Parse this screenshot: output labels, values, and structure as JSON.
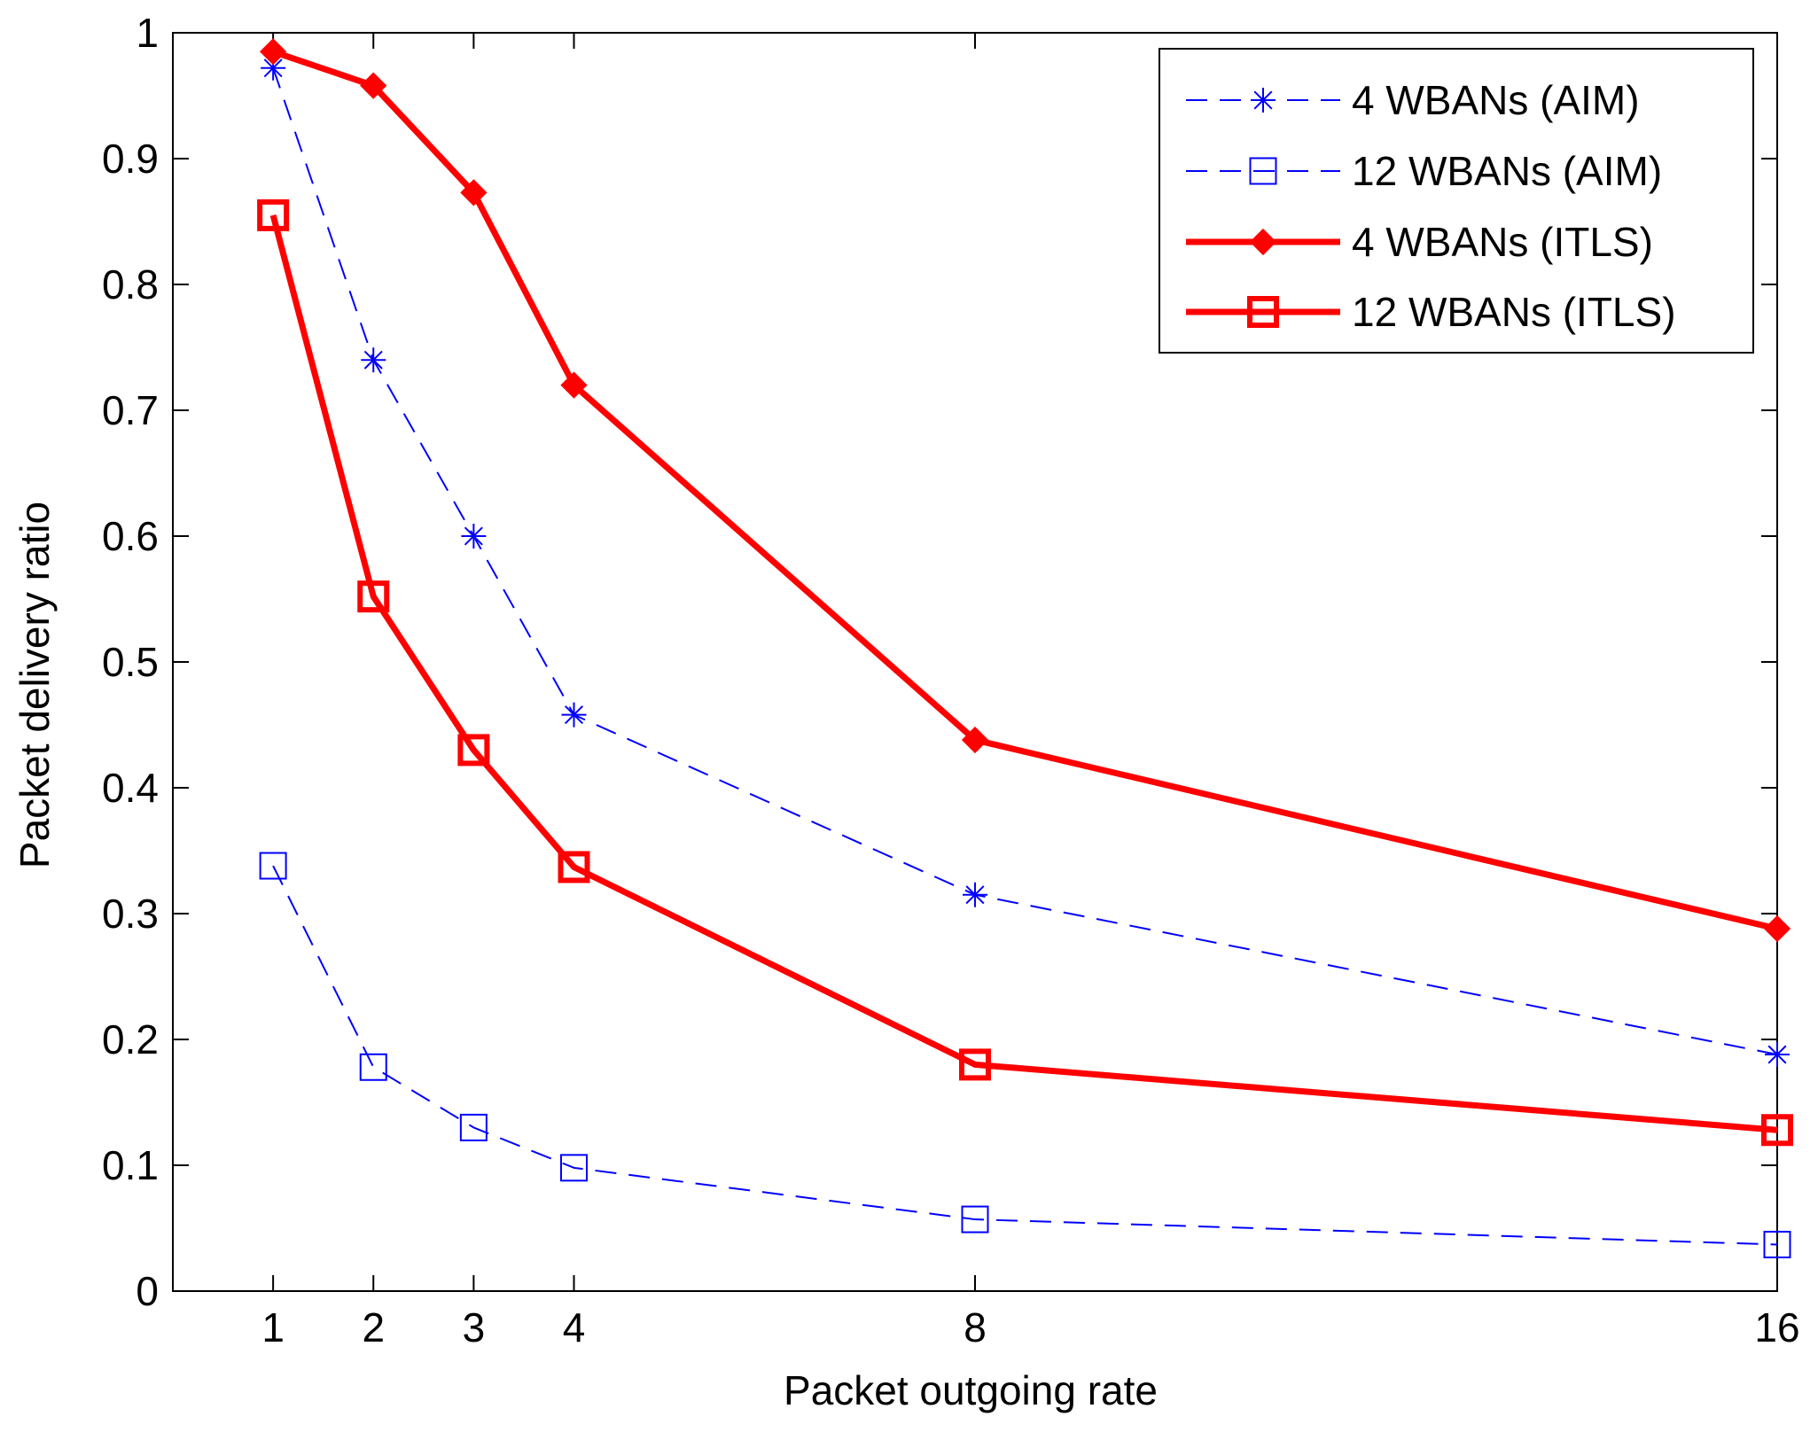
{
  "chart_data": {
    "type": "line",
    "title": "",
    "xlabel": "Packet outgoing rate",
    "ylabel": "Packet delivery ratio",
    "x": [
      1,
      2,
      3,
      4,
      8,
      16
    ],
    "x_tick_labels": [
      "1",
      "2",
      "3",
      "4",
      "8",
      "16"
    ],
    "xlim": [
      0,
      16
    ],
    "ylim": [
      0,
      1
    ],
    "y_ticks": [
      0,
      0.1,
      0.2,
      0.3,
      0.4,
      0.5,
      0.6,
      0.7,
      0.8,
      0.9,
      1
    ],
    "y_tick_labels": [
      "0",
      "0.1",
      "0.2",
      "0.3",
      "0.4",
      "0.5",
      "0.6",
      "0.7",
      "0.8",
      "0.9",
      "1"
    ],
    "grid": false,
    "legend_position": "top-right",
    "series": [
      {
        "name": "4 WBANs (AIM)",
        "values": [
          0.972,
          0.74,
          0.6,
          0.458,
          0.315,
          0.188
        ],
        "color": "#0000ff",
        "style": "dashed",
        "marker": "asterisk"
      },
      {
        "name": "12 WBANs (AIM)",
        "values": [
          0.338,
          0.178,
          0.13,
          0.098,
          0.057,
          0.037
        ],
        "color": "#0000ff",
        "style": "dashed",
        "marker": "square"
      },
      {
        "name": "4 WBANs (ITLS)",
        "values": [
          0.985,
          0.958,
          0.873,
          0.72,
          0.438,
          0.288
        ],
        "color": "#ff0000",
        "style": "solid",
        "marker": "diamond"
      },
      {
        "name": "12 WBANs (ITLS)",
        "values": [
          0.855,
          0.552,
          0.43,
          0.337,
          0.18,
          0.128
        ],
        "color": "#ff0000",
        "style": "solid",
        "marker": "square"
      }
    ]
  }
}
